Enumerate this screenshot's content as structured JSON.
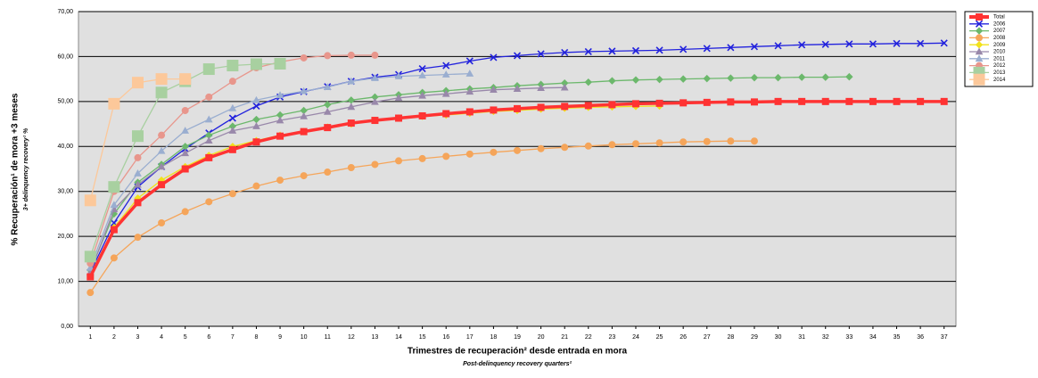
{
  "chart_data": {
    "type": "line",
    "y_label": "% Recuperación¹ de mora +3 meses",
    "y_sublabel": "3+ delinquency recovery¹ %",
    "x_label": "Trimestres de recuperación² desde entrada en mora",
    "x_sublabel": "Post-delinquency recovery quarters²",
    "categories": [
      "1",
      "2",
      "3",
      "4",
      "5",
      "6",
      "7",
      "8",
      "9",
      "10",
      "11",
      "12",
      "13",
      "14",
      "15",
      "16",
      "17",
      "18",
      "19",
      "20",
      "21",
      "22",
      "23",
      "24",
      "25",
      "26",
      "27",
      "28",
      "29",
      "30",
      "31",
      "32",
      "33",
      "34",
      "35",
      "36",
      "37"
    ],
    "ylim": [
      0,
      70
    ],
    "yticks": [
      {
        "value": 0,
        "label": "0,00"
      },
      {
        "value": 10,
        "label": "10,00"
      },
      {
        "value": 20,
        "label": "20,00"
      },
      {
        "value": 30,
        "label": "30,00"
      },
      {
        "value": 40,
        "label": "40,00"
      },
      {
        "value": 50,
        "label": "50,00"
      },
      {
        "value": 60,
        "label": "60,00"
      },
      {
        "value": 70,
        "label": "70,00"
      }
    ],
    "grid": true,
    "legend": "right",
    "series": [
      {
        "name": "Total",
        "color": "#ff3333",
        "marker": "square",
        "values": [
          11,
          21.5,
          27.5,
          31.5,
          35,
          37.5,
          39.3,
          41,
          42.3,
          43.3,
          44.2,
          45.2,
          45.8,
          46.3,
          46.8,
          47.3,
          47.7,
          48.1,
          48.4,
          48.7,
          48.9,
          49.1,
          49.3,
          49.5,
          49.6,
          49.7,
          49.8,
          49.9,
          49.9,
          50,
          50,
          50,
          50,
          50,
          50,
          50,
          50
        ]
      },
      {
        "name": "2006",
        "color": "#2222dd",
        "marker": "x",
        "values": [
          12,
          23,
          31,
          35.5,
          39.5,
          43,
          46.3,
          49,
          51,
          52.2,
          53.3,
          54.5,
          55.4,
          56,
          57.3,
          58,
          59,
          59.8,
          60.2,
          60.6,
          60.9,
          61.1,
          61.2,
          61.3,
          61.4,
          61.6,
          61.8,
          62,
          62.2,
          62.4,
          62.6,
          62.7,
          62.8,
          62.8,
          62.9,
          62.9,
          63
        ]
      },
      {
        "name": "2007",
        "color": "#6cb86c",
        "marker": "diamond",
        "values": [
          12.5,
          25,
          32,
          36,
          40,
          42.5,
          44.5,
          46,
          47,
          48,
          49.3,
          50.3,
          51,
          51.5,
          52,
          52.4,
          52.8,
          53.1,
          53.5,
          53.8,
          54.1,
          54.3,
          54.6,
          54.8,
          54.9,
          55,
          55.1,
          55.2,
          55.3,
          55.3,
          55.4,
          55.4,
          55.5,
          null,
          null,
          null,
          null
        ]
      },
      {
        "name": "2008",
        "color": "#f5a55a",
        "marker": "circle",
        "values": [
          7.5,
          15.2,
          19.8,
          23,
          25.5,
          27.7,
          29.5,
          31.2,
          32.5,
          33.5,
          34.3,
          35.3,
          36,
          36.8,
          37.3,
          37.8,
          38.3,
          38.7,
          39.1,
          39.5,
          39.8,
          40.1,
          40.4,
          40.6,
          40.8,
          41,
          41.1,
          41.2,
          41.2,
          null,
          null,
          null,
          null,
          null,
          null,
          null,
          null
        ]
      },
      {
        "name": "2009",
        "color": "#f2e21a",
        "marker": "diamond",
        "values": [
          11,
          22,
          28.5,
          32.5,
          35.5,
          38,
          40,
          41.3,
          42.5,
          43.3,
          44.3,
          45,
          45.8,
          46.3,
          46.7,
          47,
          47.4,
          47.8,
          48,
          48.3,
          48.5,
          48.7,
          48.8,
          48.9,
          49,
          null,
          null,
          null,
          null,
          null,
          null,
          null,
          null,
          null,
          null,
          null,
          null
        ]
      },
      {
        "name": "2010",
        "color": "#9988aa",
        "marker": "triangle",
        "values": [
          12,
          26,
          31.5,
          35.5,
          38.5,
          41.3,
          43.5,
          44.5,
          45.8,
          46.7,
          47.7,
          48.8,
          49.9,
          50.8,
          51.3,
          51.7,
          52.2,
          52.6,
          52.8,
          53,
          53.1,
          null,
          null,
          null,
          null,
          null,
          null,
          null,
          null,
          null,
          null,
          null,
          null,
          null,
          null,
          null,
          null
        ]
      },
      {
        "name": "2011",
        "color": "#9aaed0",
        "marker": "triangle",
        "values": [
          13,
          27,
          34,
          39,
          43.5,
          46,
          48.5,
          50.3,
          51.4,
          52.3,
          53.2,
          54.5,
          55.2,
          55.6,
          55.8,
          56,
          56.2,
          null,
          null,
          null,
          null,
          null,
          null,
          null,
          null,
          null,
          null,
          null,
          null,
          null,
          null,
          null,
          null,
          null,
          null,
          null,
          null
        ]
      },
      {
        "name": "2012",
        "color": "#e8968c",
        "marker": "circle",
        "values": [
          14,
          30,
          37.5,
          42.5,
          48,
          51,
          54.5,
          57.5,
          58.8,
          59.7,
          60.2,
          60.3,
          60.3,
          null,
          null,
          null,
          null,
          null,
          null,
          null,
          null,
          null,
          null,
          null,
          null,
          null,
          null,
          null,
          null,
          null,
          null,
          null,
          null,
          null,
          null,
          null,
          null
        ]
      },
      {
        "name": "2013",
        "color": "#a8d0a0",
        "marker": "square",
        "values": [
          15.5,
          31,
          42.3,
          52,
          54.5,
          57.2,
          58,
          58.3,
          58.4,
          null,
          null,
          null,
          null,
          null,
          null,
          null,
          null,
          null,
          null,
          null,
          null,
          null,
          null,
          null,
          null,
          null,
          null,
          null,
          null,
          null,
          null,
          null,
          null,
          null,
          null,
          null,
          null
        ]
      },
      {
        "name": "2014",
        "color": "#fcc89a",
        "marker": "square",
        "values": [
          28,
          49.5,
          54.2,
          55,
          55,
          null,
          null,
          null,
          null,
          null,
          null,
          null,
          null,
          null,
          null,
          null,
          null,
          null,
          null,
          null,
          null,
          null,
          null,
          null,
          null,
          null,
          null,
          null,
          null,
          null,
          null,
          null,
          null,
          null,
          null,
          null,
          null
        ]
      }
    ]
  }
}
